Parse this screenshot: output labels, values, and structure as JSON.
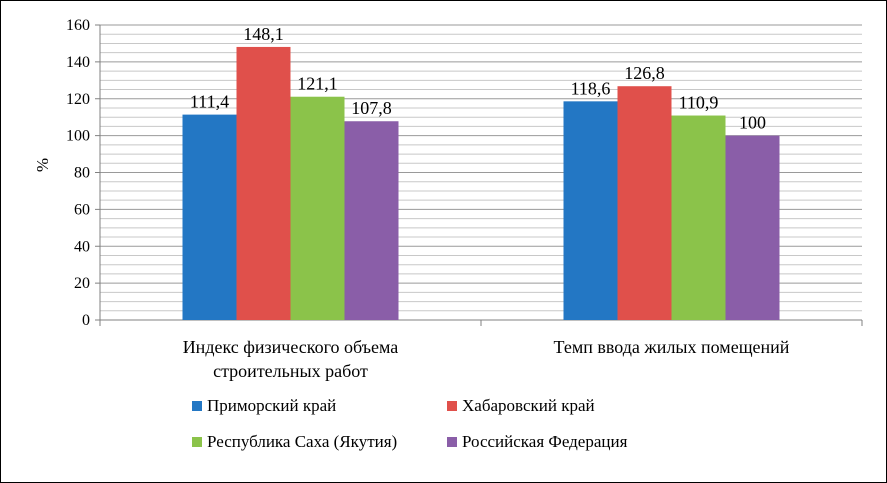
{
  "chart_data": {
    "type": "bar",
    "ylabel": "%",
    "ylim": [
      0,
      160
    ],
    "ytick_step": 20,
    "grid": "horizontal",
    "legend_position": "bottom",
    "categories": [
      [
        "Индекс физического объема",
        "строительных работ"
      ],
      [
        "Темп ввода жилых помещений"
      ]
    ],
    "series": [
      {
        "name": "Приморский край",
        "color": "#2377c4",
        "values": [
          111.4,
          118.6
        ],
        "labels": [
          "111,4",
          "118,6"
        ]
      },
      {
        "name": "Хабаровский край",
        "color": "#e0504b",
        "values": [
          148.1,
          126.8
        ],
        "labels": [
          "148,1",
          "126,8"
        ]
      },
      {
        "name": "Республика Саха (Якутия)",
        "color": "#8bc34a",
        "values": [
          121.1,
          110.9
        ],
        "labels": [
          "121,1",
          "110,9"
        ]
      },
      {
        "name": "Российская Федерация",
        "color": "#8a5ea8",
        "values": [
          107.8,
          100
        ],
        "labels": [
          "107,8",
          "100"
        ]
      }
    ]
  }
}
